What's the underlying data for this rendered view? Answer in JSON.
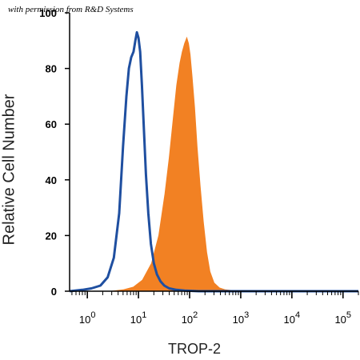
{
  "watermark": "with permission from R&D Systems",
  "chart_data": {
    "type": "area",
    "xscale": "log",
    "xlim": [
      0.45,
      200000
    ],
    "ylim": [
      0,
      100
    ],
    "xlabel": "TROP-2",
    "ylabel": "Relative Cell Number",
    "grid": false,
    "yticks": [
      0,
      20,
      40,
      60,
      80,
      100
    ],
    "xticks": [
      1,
      10,
      100,
      1000,
      10000,
      100000
    ],
    "xtick_labels": [
      [
        "10",
        "0"
      ],
      [
        "10",
        "1"
      ],
      [
        "10",
        "2"
      ],
      [
        "10",
        "3"
      ],
      [
        "10",
        "4"
      ],
      [
        "10",
        "5"
      ]
    ],
    "series": [
      {
        "style": "outline",
        "color": "#1f4fa0",
        "x": [
          0.45,
          0.8,
          1.2,
          1.8,
          2.5,
          3.3,
          4.2,
          5.0,
          5.8,
          6.5,
          7.2,
          8.0,
          8.7,
          9.3,
          10.0,
          10.8,
          11.7,
          12.8,
          14.0,
          15.6,
          17.5,
          20,
          23,
          27,
          32,
          40,
          55,
          80,
          150,
          1000,
          200000
        ],
        "y": [
          0,
          0.5,
          1,
          2,
          5,
          12,
          28,
          52,
          70,
          80,
          84,
          86,
          90,
          93,
          91,
          86,
          74,
          58,
          42,
          28,
          17,
          10,
          6,
          3.5,
          2,
          1,
          0.5,
          0.2,
          0,
          0,
          0
        ]
      },
      {
        "style": "filled",
        "color": "#f28123",
        "x": [
          0.45,
          3,
          5,
          8,
          12,
          18,
          25,
          33,
          40,
          48,
          56,
          65,
          72,
          80,
          88,
          95,
          102,
          112,
          125,
          140,
          160,
          185,
          215,
          250,
          300,
          380,
          500,
          700,
          1000,
          200000
        ],
        "y": [
          0,
          0,
          0.5,
          1.5,
          4,
          10,
          20,
          35,
          48,
          62,
          74,
          82,
          86,
          89,
          91,
          89,
          85,
          77,
          66,
          52,
          38,
          25,
          14,
          7,
          3,
          1.2,
          0.5,
          0.2,
          0,
          0
        ]
      }
    ]
  }
}
